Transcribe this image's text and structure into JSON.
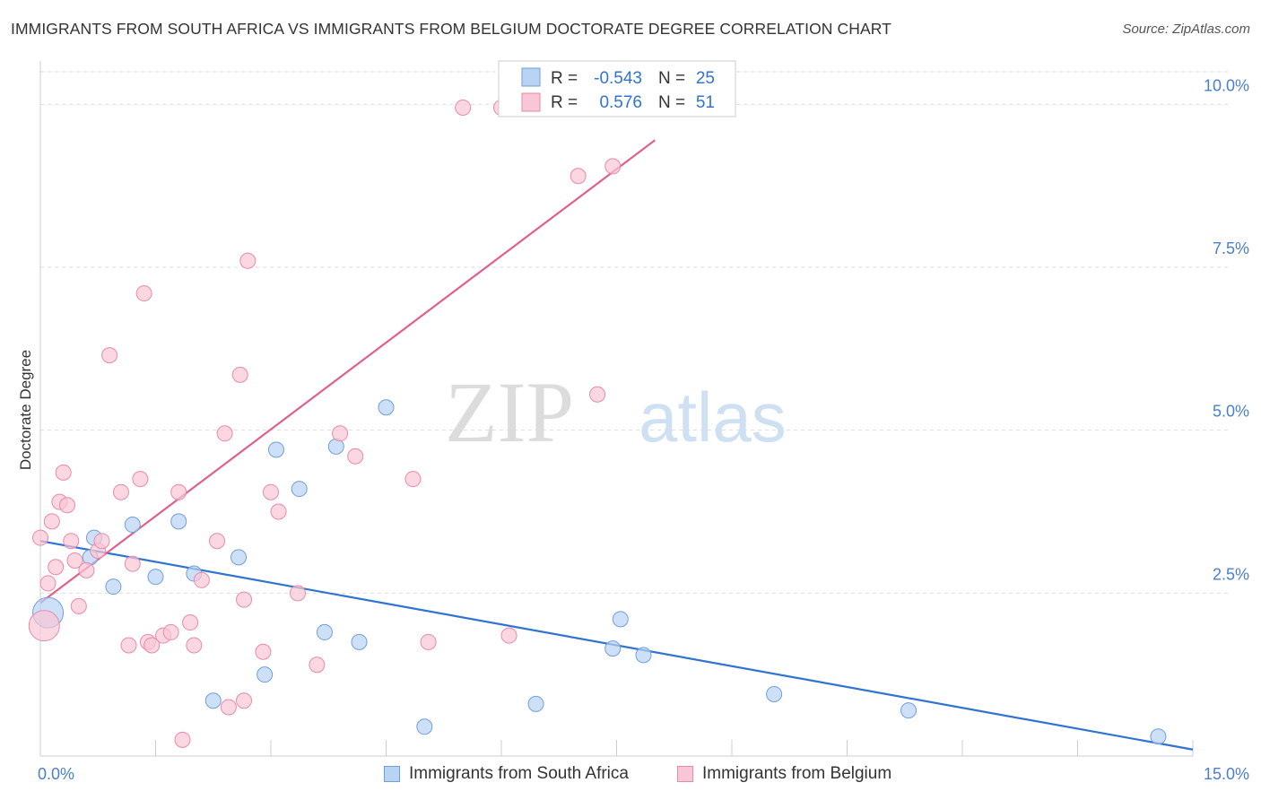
{
  "title": "IMMIGRANTS FROM SOUTH AFRICA VS IMMIGRANTS FROM BELGIUM DOCTORATE DEGREE CORRELATION CHART",
  "source": "Source: ZipAtlas.com",
  "watermark": {
    "zip": "ZIP",
    "atlas": "atlas"
  },
  "colors": {
    "blue_fill": "#b9d3f3",
    "blue_stroke": "#6e9fdb",
    "blue_line": "#2f74d0",
    "pink_fill": "#f9c6d5",
    "pink_stroke": "#e98aa6",
    "pink_line": "#e0608c",
    "tick_text": "#4a7fcb",
    "grid": "#dddddd"
  },
  "legend": {
    "rows": [
      {
        "r_label": "R =",
        "r_value": "-0.543",
        "n_label": "N =",
        "n_value": "25"
      },
      {
        "r_label": "R =",
        "r_value": "0.576",
        "n_label": "N =",
        "n_value": "51"
      }
    ]
  },
  "chart_data": {
    "type": "scatter",
    "title": "IMMIGRANTS FROM SOUTH AFRICA VS IMMIGRANTS FROM BELGIUM DOCTORATE DEGREE CORRELATION CHART",
    "xlabel": "",
    "ylabel": "Doctorate Degree",
    "xlim": [
      0,
      15
    ],
    "ylim": [
      0,
      10.5
    ],
    "x_tick_labels": [
      "0.0%",
      "15.0%"
    ],
    "y_ticks": [
      2.5,
      5.0,
      7.5,
      10.0
    ],
    "y_tick_labels": [
      "2.5%",
      "5.0%",
      "7.5%",
      "10.0%"
    ],
    "series": [
      {
        "name": "Immigrants from South Africa",
        "color": "blue",
        "r": -0.543,
        "n": 25,
        "points": [
          [
            0.1,
            2.2
          ],
          [
            0.65,
            3.05
          ],
          [
            0.7,
            3.35
          ],
          [
            0.95,
            2.6
          ],
          [
            1.2,
            3.55
          ],
          [
            1.5,
            2.75
          ],
          [
            1.8,
            3.6
          ],
          [
            2.0,
            2.8
          ],
          [
            2.25,
            0.85
          ],
          [
            2.58,
            3.05
          ],
          [
            2.92,
            1.25
          ],
          [
            3.07,
            4.7
          ],
          [
            3.37,
            4.1
          ],
          [
            3.7,
            1.9
          ],
          [
            3.85,
            4.75
          ],
          [
            4.15,
            1.75
          ],
          [
            4.5,
            5.35
          ],
          [
            5.0,
            0.45
          ],
          [
            6.45,
            0.8
          ],
          [
            7.45,
            1.65
          ],
          [
            7.55,
            2.1
          ],
          [
            7.85,
            1.55
          ],
          [
            9.55,
            0.95
          ],
          [
            11.3,
            0.7
          ],
          [
            14.55,
            0.3
          ]
        ],
        "trend": [
          [
            0.0,
            3.3
          ],
          [
            15.0,
            0.1
          ]
        ]
      },
      {
        "name": "Immigrants from Belgium",
        "color": "pink",
        "r": 0.576,
        "n": 51,
        "points": [
          [
            0.05,
            2.0
          ],
          [
            0.1,
            2.65
          ],
          [
            0.15,
            3.6
          ],
          [
            0.2,
            2.9
          ],
          [
            0.25,
            3.9
          ],
          [
            0.3,
            4.35
          ],
          [
            0.35,
            3.85
          ],
          [
            0.4,
            3.3
          ],
          [
            0.45,
            3.0
          ],
          [
            0.5,
            2.3
          ],
          [
            0.6,
            2.85
          ],
          [
            0.75,
            3.15
          ],
          [
            0.8,
            3.3
          ],
          [
            0.9,
            6.15
          ],
          [
            1.05,
            4.05
          ],
          [
            1.2,
            2.95
          ],
          [
            1.3,
            4.25
          ],
          [
            1.35,
            7.1
          ],
          [
            1.4,
            1.75
          ],
          [
            1.45,
            1.7
          ],
          [
            1.6,
            1.85
          ],
          [
            1.7,
            1.9
          ],
          [
            1.8,
            4.05
          ],
          [
            1.85,
            0.25
          ],
          [
            1.95,
            2.05
          ],
          [
            2.0,
            1.7
          ],
          [
            2.1,
            2.7
          ],
          [
            2.3,
            3.3
          ],
          [
            2.4,
            4.95
          ],
          [
            2.45,
            0.75
          ],
          [
            2.6,
            5.85
          ],
          [
            2.65,
            0.85
          ],
          [
            2.65,
            2.4
          ],
          [
            2.7,
            7.6
          ],
          [
            2.9,
            1.6
          ],
          [
            3.0,
            4.05
          ],
          [
            3.1,
            3.75
          ],
          [
            3.35,
            2.5
          ],
          [
            3.6,
            1.4
          ],
          [
            3.9,
            4.95
          ],
          [
            4.1,
            4.6
          ],
          [
            4.85,
            4.25
          ],
          [
            5.05,
            1.75
          ],
          [
            5.5,
            9.95
          ],
          [
            6.0,
            9.95
          ],
          [
            6.1,
            1.85
          ],
          [
            7.0,
            8.9
          ],
          [
            7.25,
            5.55
          ],
          [
            7.45,
            9.05
          ],
          [
            0.0,
            3.35
          ],
          [
            1.15,
            1.7
          ]
        ],
        "trend": [
          [
            0.0,
            2.35
          ],
          [
            8.0,
            9.45
          ]
        ]
      }
    ]
  },
  "bottom_legend": [
    {
      "label": "Immigrants from South Africa",
      "color": "blue"
    },
    {
      "label": "Immigrants from Belgium",
      "color": "pink"
    }
  ]
}
